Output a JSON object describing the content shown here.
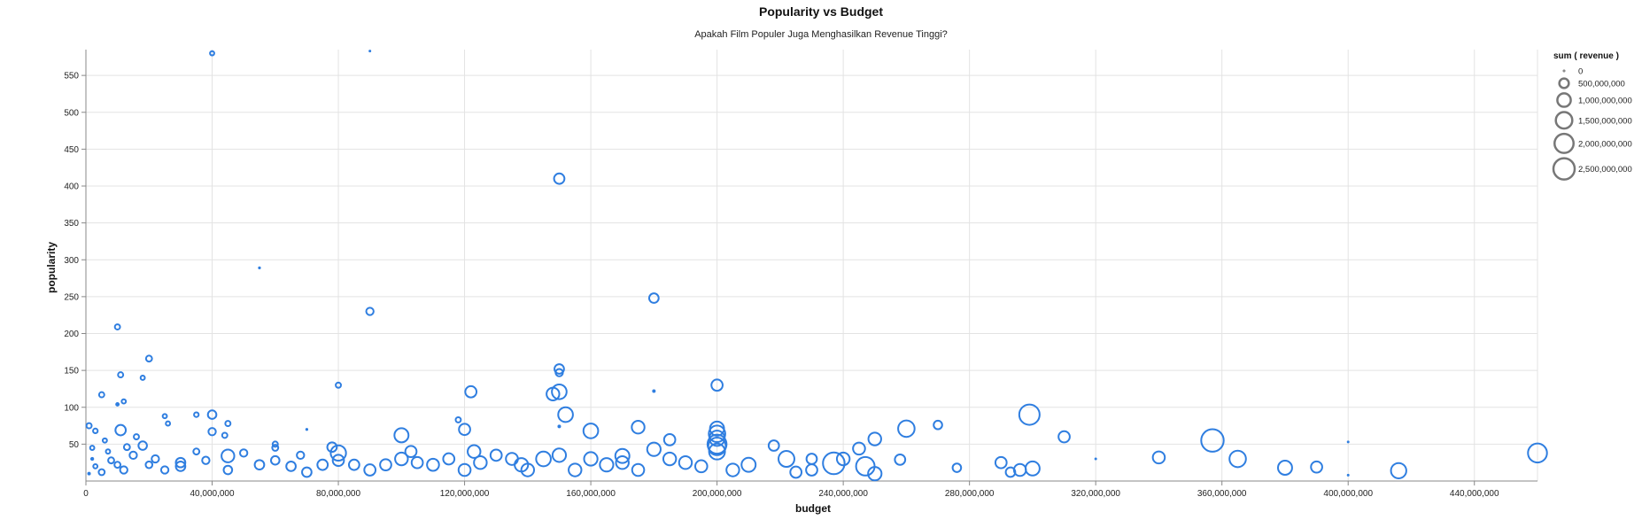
{
  "chart_data": {
    "type": "scatter",
    "title": "Popularity vs Budget",
    "subtitle": "Apakah Film Populer Juga Menghasilkan Revenue Tinggi?",
    "xlabel": "budget",
    "ylabel": "popularity",
    "xlim": [
      0,
      460000000
    ],
    "ylim": [
      0,
      585
    ],
    "x_ticks": [
      0,
      40000000,
      80000000,
      120000000,
      160000000,
      200000000,
      240000000,
      280000000,
      320000000,
      360000000,
      400000000,
      440000000
    ],
    "x_tick_labels": [
      "0",
      "40,000,000",
      "80,000,000",
      "120,000,000",
      "160,000,000",
      "200,000,000",
      "240,000,000",
      "280,000,000",
      "320,000,000",
      "360,000,000",
      "400,000,000",
      "440,000,000"
    ],
    "y_ticks": [
      50,
      100,
      150,
      200,
      250,
      300,
      350,
      400,
      450,
      500,
      550
    ],
    "y_tick_labels": [
      "50",
      "100",
      "150",
      "200",
      "250",
      "300",
      "350",
      "400",
      "450",
      "500",
      "550"
    ],
    "grid": true,
    "mark_color": "#2f7ee0",
    "size_field": "sum ( revenue )",
    "legend": {
      "title": "sum ( revenue )",
      "placement": "top-right",
      "entries": [
        {
          "label": "0",
          "value": 0
        },
        {
          "label": "500,000,000",
          "value": 500000000
        },
        {
          "label": "1,000,000,000",
          "value": 1000000000
        },
        {
          "label": "1,500,000,000",
          "value": 1500000000
        },
        {
          "label": "2,000,000,000",
          "value": 2000000000
        },
        {
          "label": "2,500,000,000",
          "value": 2500000000
        }
      ]
    },
    "points": [
      {
        "x": 40000000,
        "y": 580,
        "r": 100000000
      },
      {
        "x": 90000000,
        "y": 583,
        "r": 0
      },
      {
        "x": 150000000,
        "y": 410,
        "r": 600000000
      },
      {
        "x": 55000000,
        "y": 289,
        "r": 30000000
      },
      {
        "x": 90000000,
        "y": 230,
        "r": 300000000
      },
      {
        "x": 180000000,
        "y": 248,
        "r": 500000000
      },
      {
        "x": 10000000,
        "y": 209,
        "r": 150000000
      },
      {
        "x": 20000000,
        "y": 166,
        "r": 200000000
      },
      {
        "x": 150000000,
        "y": 152,
        "r": 500000000
      },
      {
        "x": 150000000,
        "y": 147,
        "r": 300000000
      },
      {
        "x": 11000000,
        "y": 144,
        "r": 150000000
      },
      {
        "x": 18000000,
        "y": 140,
        "r": 100000000
      },
      {
        "x": 80000000,
        "y": 130,
        "r": 150000000
      },
      {
        "x": 200000000,
        "y": 130,
        "r": 700000000
      },
      {
        "x": 180000000,
        "y": 122,
        "r": 50000000
      },
      {
        "x": 122000000,
        "y": 121,
        "r": 700000000
      },
      {
        "x": 150000000,
        "y": 121,
        "r": 1200000000
      },
      {
        "x": 148000000,
        "y": 118,
        "r": 900000000
      },
      {
        "x": 5000000,
        "y": 117,
        "r": 150000000
      },
      {
        "x": 12000000,
        "y": 108,
        "r": 100000000
      },
      {
        "x": 10000000,
        "y": 104,
        "r": 80000000
      },
      {
        "x": 152000000,
        "y": 90,
        "r": 1200000000
      },
      {
        "x": 299000000,
        "y": 90,
        "r": 2300000000
      },
      {
        "x": 40000000,
        "y": 90,
        "r": 400000000
      },
      {
        "x": 35000000,
        "y": 90,
        "r": 120000000
      },
      {
        "x": 25000000,
        "y": 88,
        "r": 100000000
      },
      {
        "x": 118000000,
        "y": 83,
        "r": 150000000
      },
      {
        "x": 45000000,
        "y": 78,
        "r": 150000000
      },
      {
        "x": 270000000,
        "y": 76,
        "r": 400000000
      },
      {
        "x": 150000000,
        "y": 74,
        "r": 50000000
      },
      {
        "x": 175000000,
        "y": 73,
        "r": 900000000
      },
      {
        "x": 260000000,
        "y": 71,
        "r": 1500000000
      },
      {
        "x": 200000000,
        "y": 71,
        "r": 1100000000
      },
      {
        "x": 120000000,
        "y": 70,
        "r": 700000000
      },
      {
        "x": 11000000,
        "y": 69,
        "r": 600000000
      },
      {
        "x": 160000000,
        "y": 68,
        "r": 1200000000
      },
      {
        "x": 40000000,
        "y": 67,
        "r": 300000000
      },
      {
        "x": 70000000,
        "y": 70,
        "r": 30000000
      },
      {
        "x": 200000000,
        "y": 64,
        "r": 1500000000
      },
      {
        "x": 100000000,
        "y": 62,
        "r": 1100000000
      },
      {
        "x": 44000000,
        "y": 62,
        "r": 150000000
      },
      {
        "x": 310000000,
        "y": 60,
        "r": 700000000
      },
      {
        "x": 200000000,
        "y": 58,
        "r": 1300000000
      },
      {
        "x": 250000000,
        "y": 57,
        "r": 900000000
      },
      {
        "x": 185000000,
        "y": 56,
        "r": 700000000
      },
      {
        "x": 357000000,
        "y": 55,
        "r": 2800000000
      },
      {
        "x": 400000000,
        "y": 53,
        "r": 0
      },
      {
        "x": 200000000,
        "y": 50,
        "r": 2000000000
      },
      {
        "x": 60000000,
        "y": 50,
        "r": 150000000
      },
      {
        "x": 218000000,
        "y": 48,
        "r": 600000000
      },
      {
        "x": 200000000,
        "y": 47,
        "r": 1700000000
      },
      {
        "x": 78000000,
        "y": 46,
        "r": 500000000
      },
      {
        "x": 13000000,
        "y": 46,
        "r": 200000000
      },
      {
        "x": 18000000,
        "y": 48,
        "r": 400000000
      },
      {
        "x": 245000000,
        "y": 44,
        "r": 800000000
      },
      {
        "x": 180000000,
        "y": 43,
        "r": 1000000000
      },
      {
        "x": 123000000,
        "y": 40,
        "r": 900000000
      },
      {
        "x": 80000000,
        "y": 38,
        "r": 1300000000
      },
      {
        "x": 103000000,
        "y": 40,
        "r": 700000000
      },
      {
        "x": 340000000,
        "y": 32,
        "r": 800000000
      },
      {
        "x": 222000000,
        "y": 30,
        "r": 1400000000
      },
      {
        "x": 365000000,
        "y": 30,
        "r": 1500000000
      },
      {
        "x": 230000000,
        "y": 30,
        "r": 600000000
      },
      {
        "x": 258000000,
        "y": 29,
        "r": 600000000
      },
      {
        "x": 45000000,
        "y": 34,
        "r": 900000000
      },
      {
        "x": 170000000,
        "y": 34,
        "r": 1100000000
      },
      {
        "x": 145000000,
        "y": 30,
        "r": 1200000000
      },
      {
        "x": 320000000,
        "y": 30,
        "r": 0
      },
      {
        "x": 237000000,
        "y": 24,
        "r": 2600000000
      },
      {
        "x": 290000000,
        "y": 25,
        "r": 700000000
      },
      {
        "x": 247000000,
        "y": 20,
        "r": 1900000000
      },
      {
        "x": 380000000,
        "y": 18,
        "r": 1100000000
      },
      {
        "x": 390000000,
        "y": 19,
        "r": 700000000
      },
      {
        "x": 300000000,
        "y": 17,
        "r": 1100000000
      },
      {
        "x": 276000000,
        "y": 18,
        "r": 400000000
      },
      {
        "x": 296000000,
        "y": 15,
        "r": 800000000
      },
      {
        "x": 416000000,
        "y": 14,
        "r": 1300000000
      },
      {
        "x": 293000000,
        "y": 12,
        "r": 500000000
      },
      {
        "x": 230000000,
        "y": 15,
        "r": 700000000
      },
      {
        "x": 460000000,
        "y": 38,
        "r": 2000000000
      },
      {
        "x": 400000000,
        "y": 8,
        "r": 0
      },
      {
        "x": 250000000,
        "y": 10,
        "r": 1000000000
      },
      {
        "x": 195000000,
        "y": 20,
        "r": 800000000
      },
      {
        "x": 210000000,
        "y": 22,
        "r": 1100000000
      },
      {
        "x": 190000000,
        "y": 25,
        "r": 900000000
      },
      {
        "x": 165000000,
        "y": 22,
        "r": 1000000000
      },
      {
        "x": 138000000,
        "y": 22,
        "r": 1000000000
      },
      {
        "x": 125000000,
        "y": 25,
        "r": 900000000
      },
      {
        "x": 110000000,
        "y": 22,
        "r": 800000000
      },
      {
        "x": 95000000,
        "y": 22,
        "r": 700000000
      },
      {
        "x": 85000000,
        "y": 22,
        "r": 600000000
      },
      {
        "x": 75000000,
        "y": 22,
        "r": 600000000
      },
      {
        "x": 65000000,
        "y": 20,
        "r": 500000000
      },
      {
        "x": 55000000,
        "y": 22,
        "r": 500000000
      },
      {
        "x": 30000000,
        "y": 25,
        "r": 500000000
      },
      {
        "x": 22000000,
        "y": 30,
        "r": 300000000
      },
      {
        "x": 15000000,
        "y": 35,
        "r": 300000000
      },
      {
        "x": 8000000,
        "y": 28,
        "r": 200000000
      },
      {
        "x": 3000000,
        "y": 20,
        "r": 100000000
      },
      {
        "x": 1000000,
        "y": 75,
        "r": 150000000
      },
      {
        "x": 3000000,
        "y": 68,
        "r": 120000000
      },
      {
        "x": 6000000,
        "y": 55,
        "r": 100000000
      },
      {
        "x": 2000000,
        "y": 45,
        "r": 100000000
      },
      {
        "x": 26000000,
        "y": 78,
        "r": 100000000
      },
      {
        "x": 35000000,
        "y": 40,
        "r": 200000000
      },
      {
        "x": 50000000,
        "y": 38,
        "r": 300000000
      },
      {
        "x": 60000000,
        "y": 45,
        "r": 200000000
      },
      {
        "x": 68000000,
        "y": 35,
        "r": 300000000
      },
      {
        "x": 100000000,
        "y": 30,
        "r": 900000000
      },
      {
        "x": 115000000,
        "y": 30,
        "r": 700000000
      },
      {
        "x": 130000000,
        "y": 35,
        "r": 700000000
      },
      {
        "x": 140000000,
        "y": 15,
        "r": 900000000
      },
      {
        "x": 150000000,
        "y": 35,
        "r": 1000000000
      },
      {
        "x": 160000000,
        "y": 30,
        "r": 1000000000
      },
      {
        "x": 175000000,
        "y": 15,
        "r": 800000000
      },
      {
        "x": 185000000,
        "y": 30,
        "r": 900000000
      },
      {
        "x": 200000000,
        "y": 40,
        "r": 1400000000
      },
      {
        "x": 205000000,
        "y": 15,
        "r": 900000000
      },
      {
        "x": 155000000,
        "y": 15,
        "r": 900000000
      },
      {
        "x": 120000000,
        "y": 15,
        "r": 800000000
      },
      {
        "x": 90000000,
        "y": 15,
        "r": 700000000
      },
      {
        "x": 70000000,
        "y": 12,
        "r": 500000000
      },
      {
        "x": 45000000,
        "y": 15,
        "r": 400000000
      },
      {
        "x": 25000000,
        "y": 15,
        "r": 300000000
      },
      {
        "x": 12000000,
        "y": 15,
        "r": 300000000
      },
      {
        "x": 5000000,
        "y": 12,
        "r": 200000000
      },
      {
        "x": 16000000,
        "y": 60,
        "r": 150000000
      },
      {
        "x": 30000000,
        "y": 20,
        "r": 500000000
      },
      {
        "x": 80000000,
        "y": 28,
        "r": 700000000
      },
      {
        "x": 225000000,
        "y": 12,
        "r": 700000000
      },
      {
        "x": 240000000,
        "y": 30,
        "r": 900000000
      },
      {
        "x": 170000000,
        "y": 25,
        "r": 900000000
      },
      {
        "x": 135000000,
        "y": 30,
        "r": 800000000
      },
      {
        "x": 105000000,
        "y": 25,
        "r": 700000000
      },
      {
        "x": 60000000,
        "y": 28,
        "r": 400000000
      },
      {
        "x": 38000000,
        "y": 28,
        "r": 300000000
      },
      {
        "x": 20000000,
        "y": 22,
        "r": 250000000
      },
      {
        "x": 10000000,
        "y": 22,
        "r": 200000000
      },
      {
        "x": 7000000,
        "y": 40,
        "r": 100000000
      },
      {
        "x": 2000000,
        "y": 30,
        "r": 60000000
      },
      {
        "x": 1000000,
        "y": 10,
        "r": 50000000
      }
    ]
  }
}
